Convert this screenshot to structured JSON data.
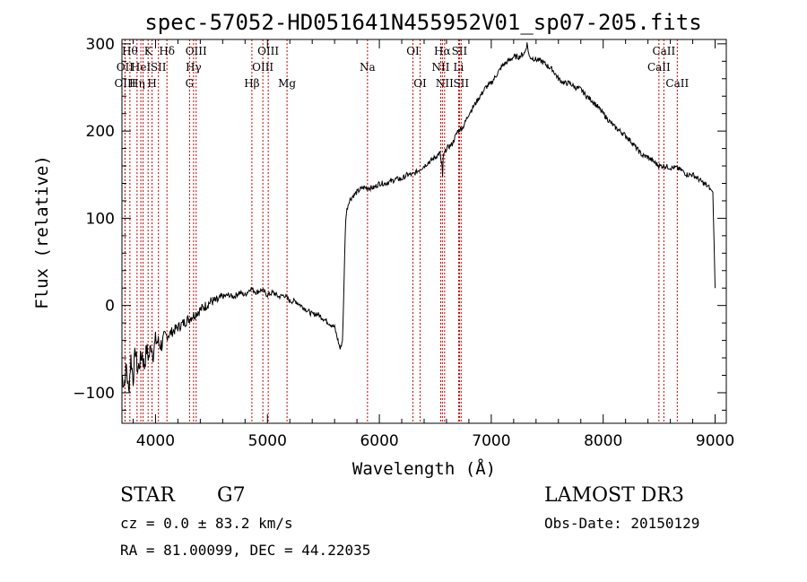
{
  "chart_data": {
    "type": "line",
    "title": "spec-57052-HD051641N455952V01_sp07-205.fits",
    "xlabel": "Wavelength (Å)",
    "ylabel": "Flux (relative)",
    "xlim": [
      3700,
      9100
    ],
    "ylim": [
      -135,
      305
    ],
    "xticks": [
      "4000",
      "5000",
      "6000",
      "7000",
      "8000",
      "9000"
    ],
    "xtick_values": [
      4000,
      5000,
      6000,
      7000,
      8000,
      9000
    ],
    "yticks": [
      "−100",
      "0",
      "100",
      "200",
      "300"
    ],
    "ytick_values": [
      -100,
      0,
      100,
      200,
      300
    ],
    "series": [
      {
        "x": [
          3700,
          3720,
          3740,
          3760,
          3780,
          3800,
          3820,
          3840,
          3860,
          3880,
          3900,
          3920,
          3940,
          3960,
          3980,
          4000,
          4050,
          4100,
          4150,
          4200,
          4250,
          4300,
          4350,
          4400,
          4450,
          4500,
          4550,
          4600,
          4650,
          4700,
          4750,
          4800,
          4850,
          4900,
          4950,
          5000,
          5050,
          5100,
          5150,
          5200,
          5250,
          5300,
          5350,
          5400,
          5450,
          5500,
          5550,
          5600,
          5620,
          5650,
          5670,
          5680,
          5690,
          5700,
          5710,
          5730,
          5760,
          5800,
          5850,
          5900,
          5950,
          6000,
          6050,
          6100,
          6150,
          6200,
          6250,
          6300,
          6350,
          6400,
          6450,
          6500,
          6540,
          6560,
          6565,
          6570,
          6600,
          6650,
          6700,
          6750,
          6800,
          6850,
          6900,
          6950,
          7000,
          7050,
          7100,
          7150,
          7200,
          7250,
          7300,
          7320,
          7340,
          7400,
          7450,
          7500,
          7550,
          7600,
          7650,
          7700,
          7750,
          7800,
          7850,
          7900,
          7950,
          8000,
          8050,
          8100,
          8150,
          8200,
          8250,
          8300,
          8350,
          8400,
          8450,
          8500,
          8550,
          8600,
          8650,
          8700,
          8750,
          8800,
          8850,
          8900,
          8950,
          8980,
          9000
        ],
        "y": [
          -80,
          -90,
          -70,
          -100,
          -60,
          -85,
          -50,
          -75,
          -65,
          -55,
          -70,
          -50,
          -60,
          -45,
          -55,
          -40,
          -45,
          -35,
          -30,
          -25,
          -20,
          -15,
          -10,
          -5,
          0,
          5,
          5,
          10,
          12,
          10,
          15,
          12,
          20,
          15,
          18,
          12,
          15,
          10,
          12,
          5,
          5,
          0,
          -5,
          -10,
          -10,
          -15,
          -20,
          -25,
          -35,
          -50,
          -40,
          0,
          60,
          100,
          110,
          120,
          125,
          130,
          135,
          135,
          135,
          140,
          140,
          142,
          145,
          145,
          150,
          150,
          155,
          160,
          165,
          170,
          175,
          160,
          145,
          170,
          180,
          185,
          200,
          205,
          220,
          230,
          240,
          250,
          255,
          265,
          275,
          280,
          285,
          285,
          290,
          300,
          285,
          282,
          280,
          275,
          270,
          260,
          255,
          255,
          250,
          248,
          240,
          235,
          228,
          220,
          212,
          205,
          200,
          195,
          188,
          180,
          172,
          170,
          165,
          160,
          160,
          158,
          158,
          155,
          150,
          150,
          145,
          140,
          135,
          130,
          20
        ]
      }
    ],
    "emission_lines": [
      {
        "x": 3727,
        "label": "OII",
        "row": 1
      },
      {
        "x": 3728,
        "label": "OIII",
        "row": 2
      },
      {
        "x": 3771,
        "label": "Hθ",
        "row": 0
      },
      {
        "x": 3835,
        "label": "Hη",
        "row": 2
      },
      {
        "x": 3869,
        "label": "HeI",
        "row": 1
      },
      {
        "x": 3889,
        "label": "",
        "row": 1
      },
      {
        "x": 3934,
        "label": "K",
        "row": 0
      },
      {
        "x": 3969,
        "label": "H",
        "row": 2
      },
      {
        "x": 4026,
        "label": "SII",
        "row": 1
      },
      {
        "x": 4102,
        "label": "Hδ",
        "row": 0
      },
      {
        "x": 4304,
        "label": "G",
        "row": 2
      },
      {
        "x": 4340,
        "label": "Hγ",
        "row": 1
      },
      {
        "x": 4363,
        "label": "OIII",
        "row": 0
      },
      {
        "x": 4861,
        "label": "Hβ",
        "row": 2
      },
      {
        "x": 4959,
        "label": "OIII",
        "row": 1
      },
      {
        "x": 5007,
        "label": "OIII",
        "row": 0
      },
      {
        "x": 5175,
        "label": "Mg",
        "row": 2
      },
      {
        "x": 5894,
        "label": "Na",
        "row": 1
      },
      {
        "x": 6300,
        "label": "OI",
        "row": 0
      },
      {
        "x": 6364,
        "label": "OI",
        "row": 2
      },
      {
        "x": 6548,
        "label": "NII",
        "row": 1
      },
      {
        "x": 6563,
        "label": "Hα",
        "row": 0
      },
      {
        "x": 6583,
        "label": "NII",
        "row": 2
      },
      {
        "x": 6708,
        "label": "Li",
        "row": 1
      },
      {
        "x": 6716,
        "label": "SII",
        "row": 0
      },
      {
        "x": 6731,
        "label": "SII",
        "row": 2
      },
      {
        "x": 8498,
        "label": "CaII",
        "row": 1
      },
      {
        "x": 8542,
        "label": "CaII",
        "row": 0
      },
      {
        "x": 8662,
        "label": "CaII",
        "row": 2
      }
    ],
    "colors": {
      "spectrum": "#000000",
      "lines": "#cc0000",
      "axes": "#000000"
    }
  },
  "info": {
    "object_class": "STAR",
    "subclass": "G7",
    "survey": "LAMOST DR3",
    "redshift_line": "cz = 0.0 ± 83.2 km/s",
    "obs_date": "Obs-Date: 20150129",
    "coords": "RA =  81.00099, DEC =  44.22035"
  }
}
